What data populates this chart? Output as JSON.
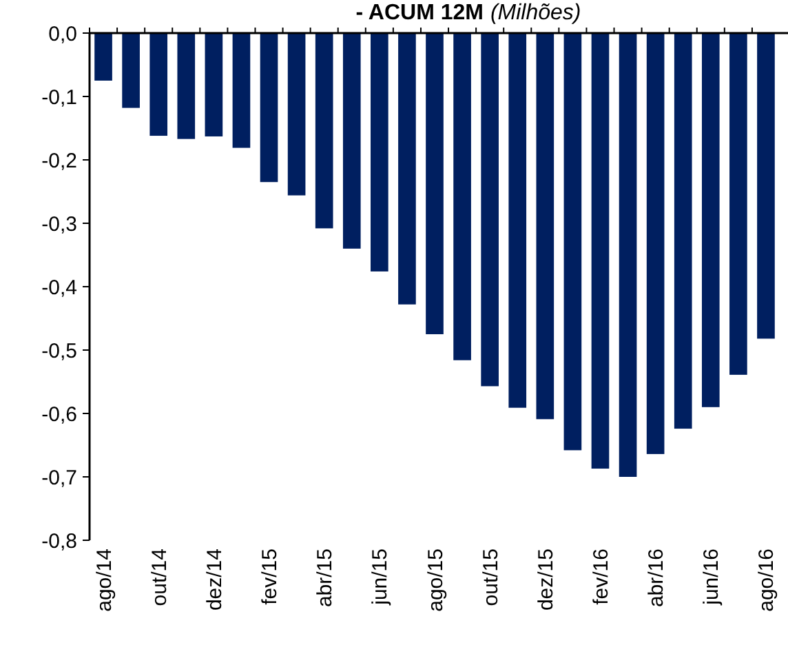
{
  "chart_data": {
    "type": "bar",
    "title": "- ACUM 12M",
    "subtitle": "(Milhões)",
    "categories": [
      "ago/14",
      null,
      "out/14",
      null,
      "dez/14",
      null,
      "fev/15",
      null,
      "abr/15",
      null,
      "jun/15",
      null,
      "ago/15",
      null,
      "out/15",
      null,
      "dez/15",
      null,
      "fev/16",
      null,
      "abr/16",
      null,
      "jun/16",
      null,
      "ago/16"
    ],
    "values": [
      -0.075,
      -0.118,
      -0.162,
      -0.167,
      -0.163,
      -0.181,
      -0.235,
      -0.256,
      -0.308,
      -0.34,
      -0.376,
      -0.428,
      -0.475,
      -0.516,
      -0.557,
      -0.591,
      -0.609,
      -0.658,
      -0.687,
      -0.7,
      -0.664,
      -0.624,
      -0.59,
      -0.539,
      -0.482
    ],
    "color": "#001f60",
    "ylim": [
      -0.8,
      0
    ],
    "yticks": [
      {
        "value": 0,
        "label": "0,0"
      },
      {
        "value": -0.1,
        "label": "-0,1"
      },
      {
        "value": -0.2,
        "label": "-0,2"
      },
      {
        "value": -0.3,
        "label": "-0,3"
      },
      {
        "value": -0.4,
        "label": "-0,4"
      },
      {
        "value": -0.5,
        "label": "-0,5"
      },
      {
        "value": -0.6,
        "label": "-0,6"
      },
      {
        "value": -0.7,
        "label": "-0,7"
      },
      {
        "value": -0.8,
        "label": "-0,8"
      }
    ]
  }
}
